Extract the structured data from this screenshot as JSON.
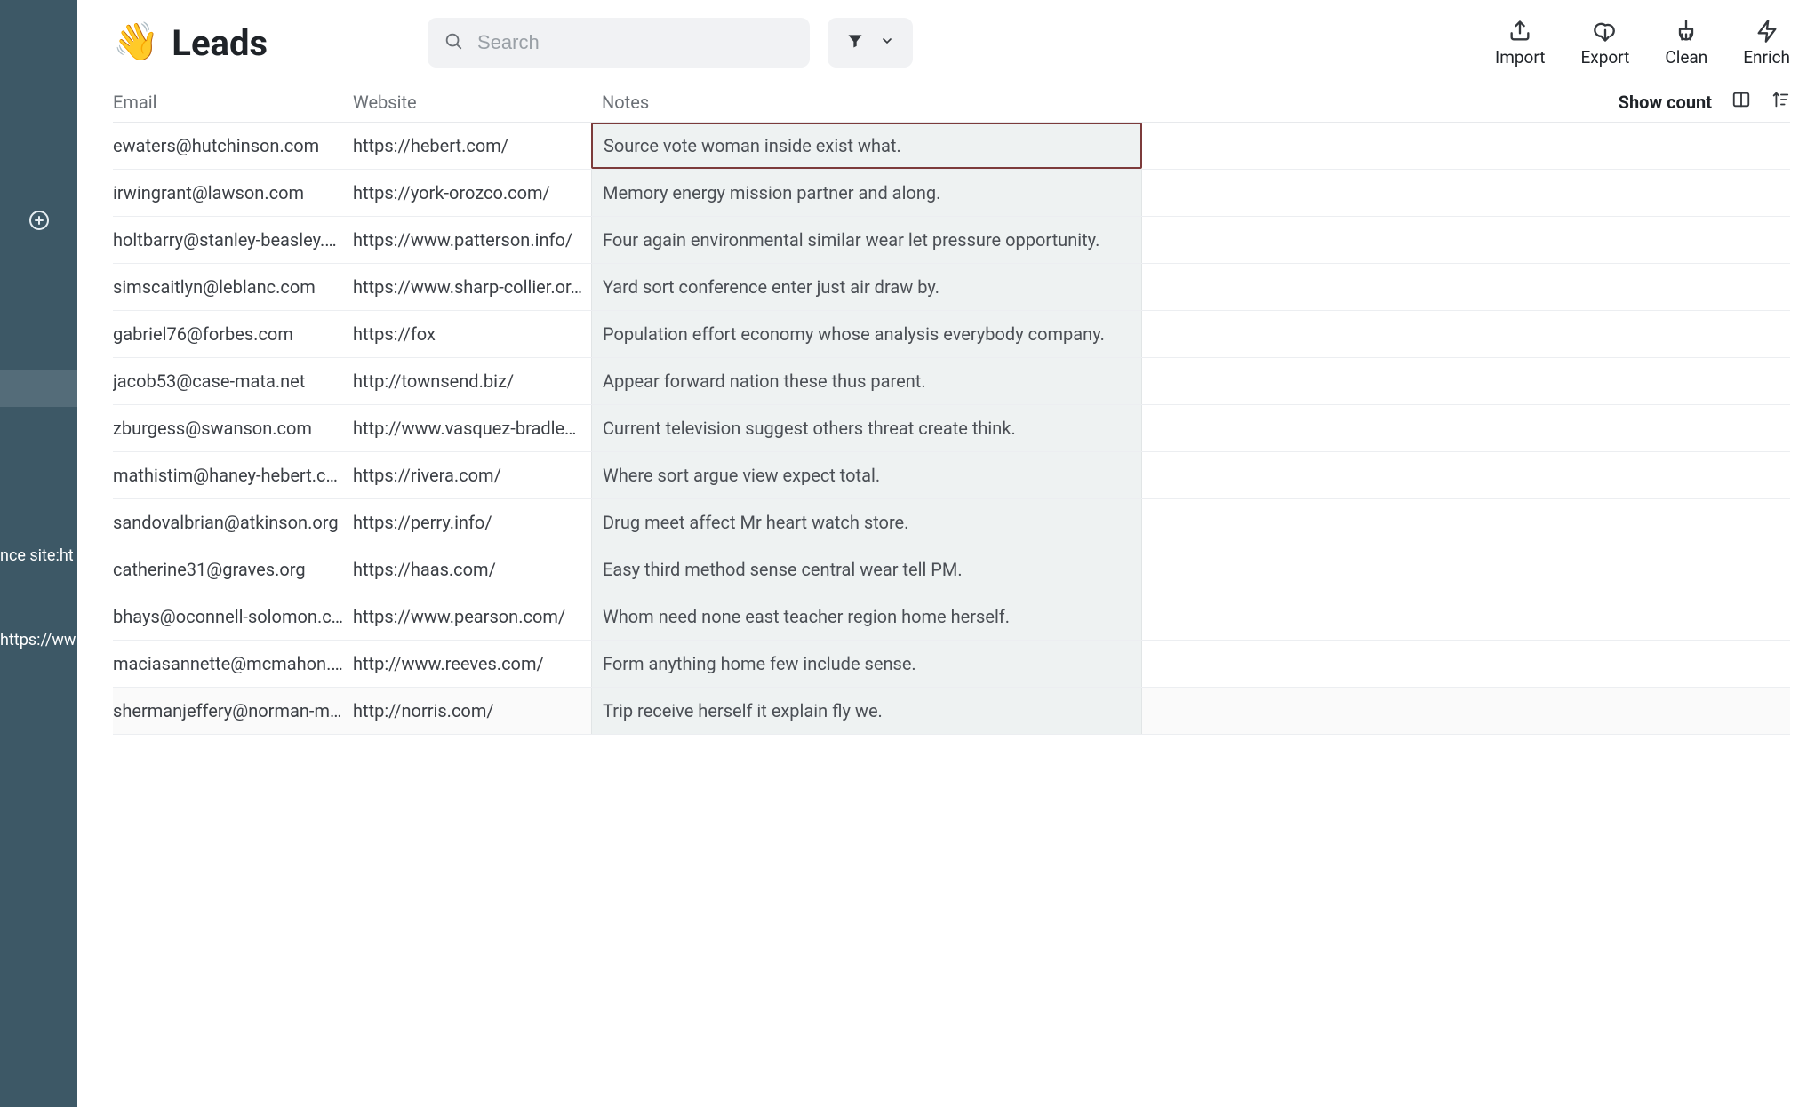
{
  "header": {
    "emoji": "👋",
    "title": "Leads",
    "search_placeholder": "Search",
    "actions": {
      "import": "Import",
      "export": "Export",
      "clean": "Clean",
      "enrich": "Enrich"
    }
  },
  "sidebar": {
    "overflow_text_a": "nce site:ht",
    "overflow_text_b": "https://ww"
  },
  "table": {
    "headers": {
      "email": "Email",
      "website": "Website",
      "notes": "Notes"
    },
    "show_count_label": "Show count",
    "rows": [
      {
        "email": "ewaters@hutchinson.com",
        "website": "https://hebert.com/",
        "notes": "Source vote woman inside exist what."
      },
      {
        "email": "irwingrant@lawson.com",
        "website": "https://york-orozco.com/",
        "notes": "Memory energy mission partner and along."
      },
      {
        "email": "holtbarry@stanley-beasley.c…",
        "website": "https://www.patterson.info/",
        "notes": "Four again environmental similar wear let pressure opportunity."
      },
      {
        "email": "simscaitlyn@leblanc.com",
        "website": "https://www.sharp-collier.or…",
        "notes": "Yard sort conference enter just air draw by."
      },
      {
        "email": "gabriel76@forbes.com",
        "website": "https://fox",
        "notes": "Population effort economy whose analysis everybody company."
      },
      {
        "email": "jacob53@case-mata.net",
        "website": "http://townsend.biz/",
        "notes": "Appear forward nation these thus parent."
      },
      {
        "email": "zburgess@swanson.com",
        "website": "http://www.vasquez-bradley…",
        "notes": "Current television suggest others threat create think."
      },
      {
        "email": "mathistim@haney-hebert.c…",
        "website": "https://rivera.com/",
        "notes": "Where sort argue view expect total."
      },
      {
        "email": "sandovalbrian@atkinson.org",
        "website": "https://perry.info/",
        "notes": "Drug meet affect Mr heart watch store."
      },
      {
        "email": "catherine31@graves.org",
        "website": "https://haas.com/",
        "notes": "Easy third method sense central wear tell PM."
      },
      {
        "email": "bhays@oconnell-solomon.c…",
        "website": "https://www.pearson.com/",
        "notes": "Whom need none east teacher region home herself."
      },
      {
        "email": "maciasannette@mcmahon.…",
        "website": "http://www.reeves.com/",
        "notes": "Form anything home few include sense."
      },
      {
        "email": "shermanjeffery@norman-m…",
        "website": "http://norris.com/",
        "notes": "Trip receive herself it explain fly we."
      }
    ]
  }
}
